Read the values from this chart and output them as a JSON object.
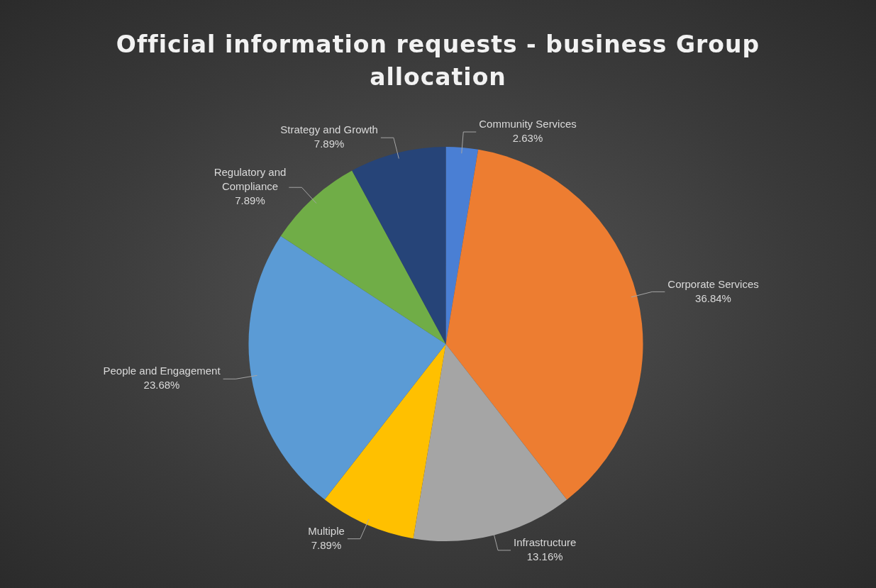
{
  "chart_data": {
    "type": "pie",
    "title": "Official information requests - business Group allocation",
    "categories": [
      "Community Services",
      "Corporate Services",
      "Infrastructure",
      "Multiple",
      "People and Engagement",
      "Regulatory and Compliance",
      "Strategy and Growth"
    ],
    "values": [
      2.63,
      36.84,
      13.16,
      7.89,
      23.68,
      7.89,
      7.89
    ],
    "colors": [
      "#4a7fd4",
      "#ed7d31",
      "#a5a5a5",
      "#ffc000",
      "#5b9bd5",
      "#70ad47",
      "#264478"
    ],
    "value_labels": [
      "2.63%",
      "36.84%",
      "13.16%",
      "7.89%",
      "23.68%",
      "7.89%",
      "7.89%"
    ],
    "legend": false
  }
}
